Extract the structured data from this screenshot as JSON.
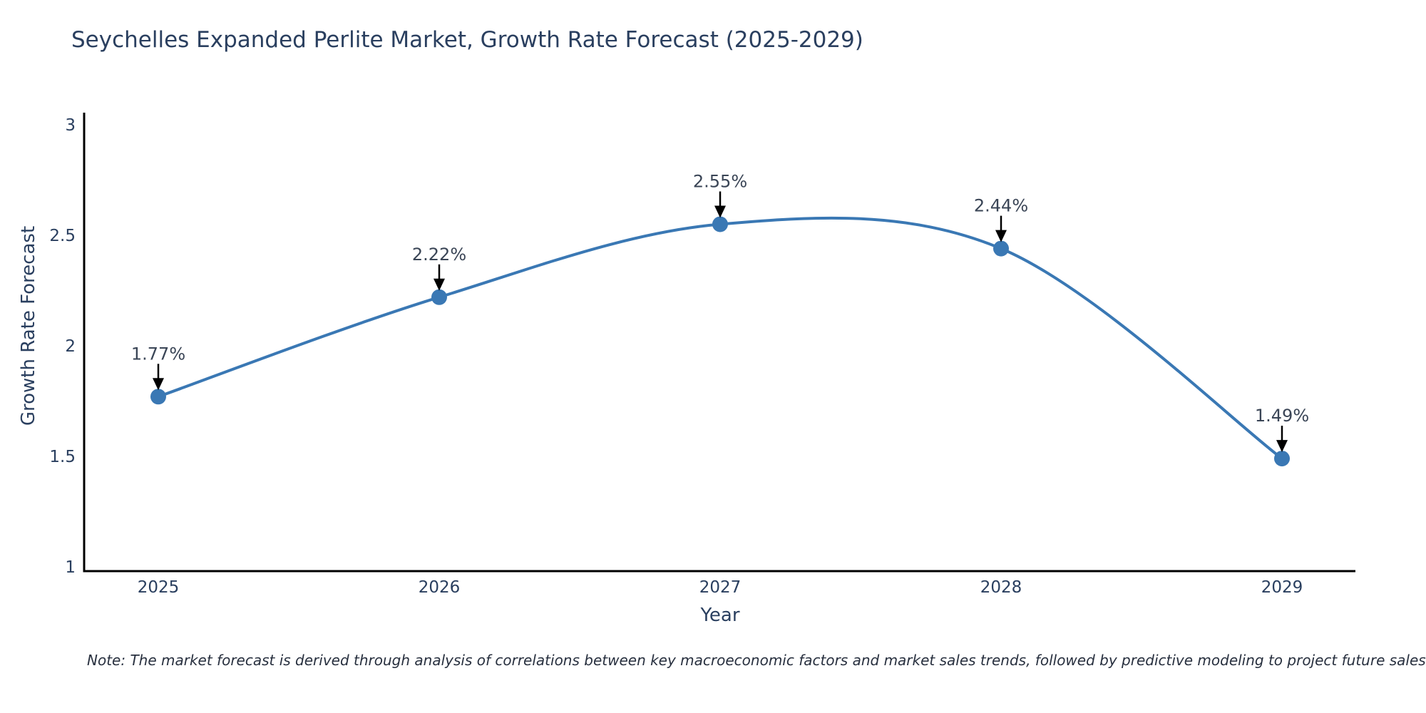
{
  "figure": {
    "note": "Note: The market forecast is derived through analysis of correlations between key macroeconomic factors and market sales trends, followed by predictive modeling to project future sales",
    "colors": {
      "line": "#3a78b4",
      "marker": "#3a78b4",
      "arrow": "#000000",
      "axis_spine": "#000000",
      "title_text": "#2a3f5f",
      "tick_text": "#2a3f5f",
      "annotation_text": "#3a4556",
      "note_text": "#28303f",
      "background": "#ffffff"
    }
  },
  "chart_data": {
    "type": "line",
    "title": "Seychelles Expanded Perlite Market, Growth Rate Forecast (2025-2029)",
    "xlabel": "Year",
    "ylabel": "Growth Rate Forecast",
    "x": [
      2025,
      2026,
      2027,
      2028,
      2029
    ],
    "values": [
      1.77,
      2.22,
      2.55,
      2.44,
      1.49
    ],
    "point_labels": [
      "1.77%",
      "2.22%",
      "2.55%",
      "2.44%",
      "1.49%"
    ],
    "xtick_labels": [
      "2025",
      "2026",
      "2027",
      "2028",
      "2029"
    ],
    "ytick_values": [
      1,
      1.5,
      2,
      2.5,
      3
    ],
    "ytick_labels": [
      "1",
      "1.5",
      "2",
      "2.5",
      "3"
    ],
    "ylim": [
      1,
      3.05
    ],
    "xlim": [
      2024.73,
      2029.27
    ],
    "grid": false,
    "legend_position": "none",
    "line_shape": "spline",
    "markers": true,
    "annotation_style": "value labels above points with downward black arrows"
  }
}
